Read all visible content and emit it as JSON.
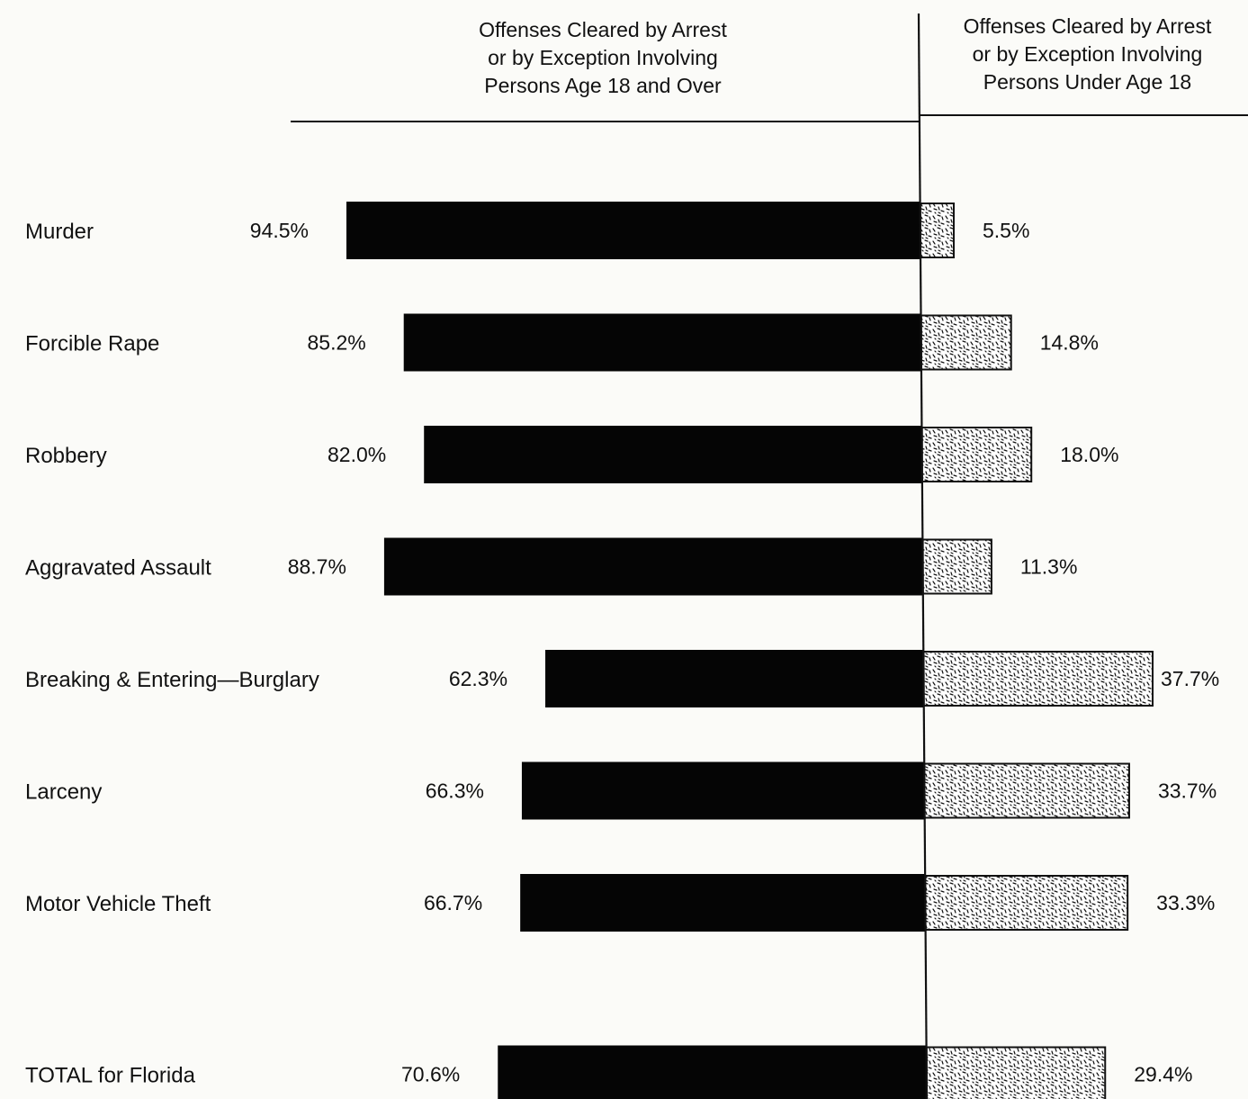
{
  "chart_data": {
    "type": "bar",
    "title": "",
    "xlabel": "",
    "ylabel": "",
    "stacked": true,
    "orientation": "horizontal",
    "categories": [
      "Murder",
      "Forcible Rape",
      "Robbery",
      "Aggravated Assault",
      "Breaking & Entering—Burglary",
      "Larceny",
      "Motor Vehicle Theft",
      "TOTAL for Florida"
    ],
    "series": [
      {
        "name": "Offenses Cleared by Arrest or by Exception Involving Persons Age 18 and Over",
        "values": [
          94.5,
          85.2,
          82.0,
          88.7,
          62.3,
          66.3,
          66.7,
          70.6
        ],
        "labels": [
          "94.5%",
          "85.2%",
          "82.0%",
          "88.7%",
          "62.3%",
          "66.3%",
          "66.7%",
          "70.6%"
        ],
        "color": "#050505"
      },
      {
        "name": "Offenses Cleared by Arrest or by Exception Involving Persons Under Age 18",
        "values": [
          5.5,
          14.8,
          18.0,
          11.3,
          37.7,
          33.7,
          33.3,
          29.4
        ],
        "labels": [
          "5.5%",
          "14.8%",
          "18.0%",
          "11.3%",
          "37.7%",
          "33.7%",
          "33.3%",
          "29.4%"
        ],
        "color": "#ffffff"
      }
    ],
    "headers": {
      "left": "Offenses Cleared by Arrest\nor by Exception Involving\nPersons Age 18 and Over",
      "right": "Offenses Cleared by Arrest\nor by Exception Involving\nPersons Under Age 18"
    },
    "legend": "none",
    "grid": false
  }
}
